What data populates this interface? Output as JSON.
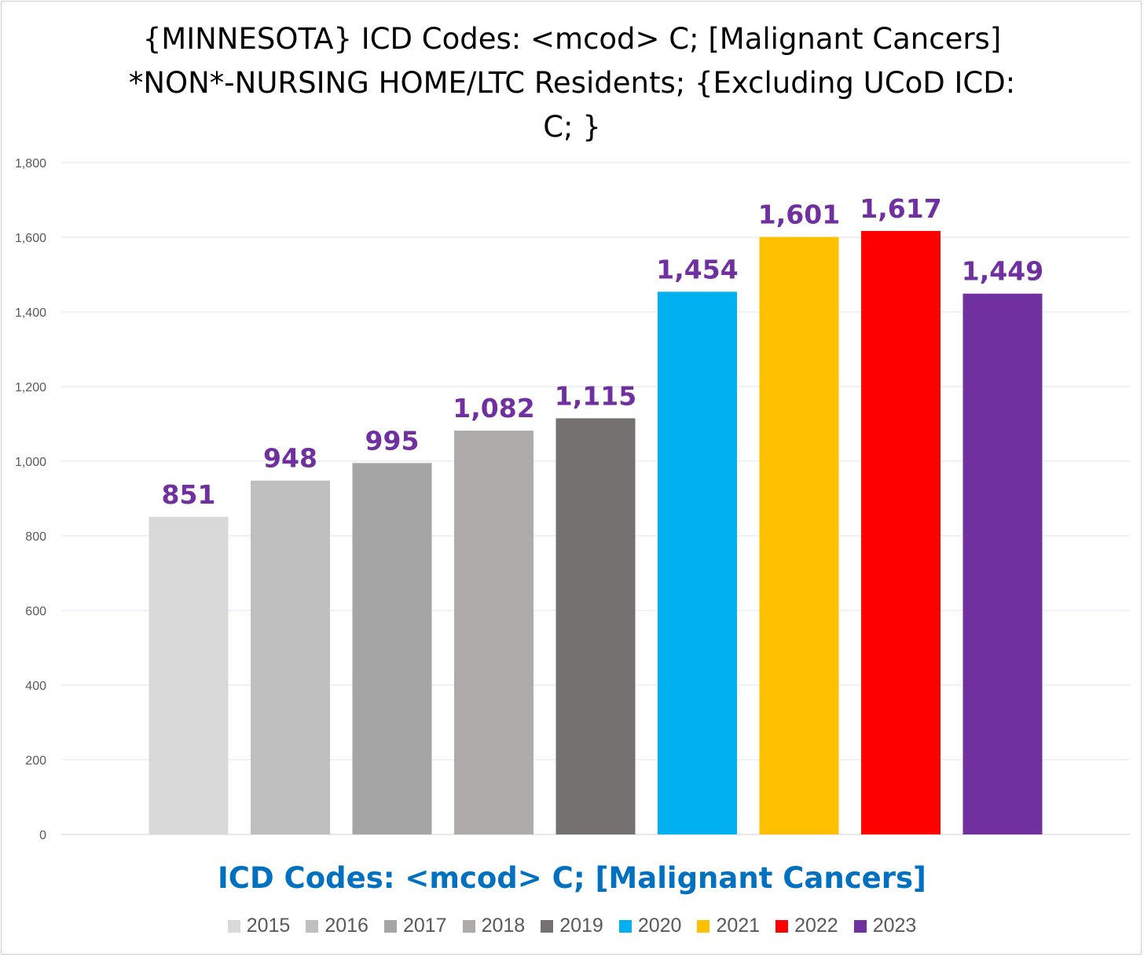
{
  "chart_data": {
    "type": "bar",
    "title_lines": [
      "{MINNESOTA}  ICD Codes: <mcod> C;  [Malignant Cancers]",
      "*NON*-NURSING HOME/LTC Residents; {Excluding UCoD ICD:",
      "C;  }"
    ],
    "xlabel": "ICD Codes: <mcod> C;  [Malignant Cancers]",
    "ylabel": "",
    "ylim": [
      0,
      1800
    ],
    "yticks": [
      0,
      200,
      400,
      600,
      800,
      1000,
      1200,
      1400,
      1600,
      1800
    ],
    "ytick_labels": [
      "0",
      "200",
      "400",
      "600",
      "800",
      "1,000",
      "1,200",
      "1,400",
      "1,600",
      "1,800"
    ],
    "grid": true,
    "legend_position": "bottom",
    "series": [
      {
        "name": "2015",
        "value": 851,
        "label": "851",
        "color": "#d9d9d9"
      },
      {
        "name": "2016",
        "value": 948,
        "label": "948",
        "color": "#bfbfbf"
      },
      {
        "name": "2017",
        "value": 995,
        "label": "995",
        "color": "#a5a5a5"
      },
      {
        "name": "2018",
        "value": 1082,
        "label": "1,082",
        "color": "#afabab"
      },
      {
        "name": "2019",
        "value": 1115,
        "label": "1,115",
        "color": "#767171"
      },
      {
        "name": "2020",
        "value": 1454,
        "label": "1,454",
        "color": "#00b0f0"
      },
      {
        "name": "2021",
        "value": 1601,
        "label": "1,601",
        "color": "#ffc000"
      },
      {
        "name": "2022",
        "value": 1617,
        "label": "1,617",
        "color": "#ff0000"
      },
      {
        "name": "2023",
        "value": 1449,
        "label": "1,449",
        "color": "#7030a0"
      }
    ],
    "data_label_color": "#7030a0"
  }
}
